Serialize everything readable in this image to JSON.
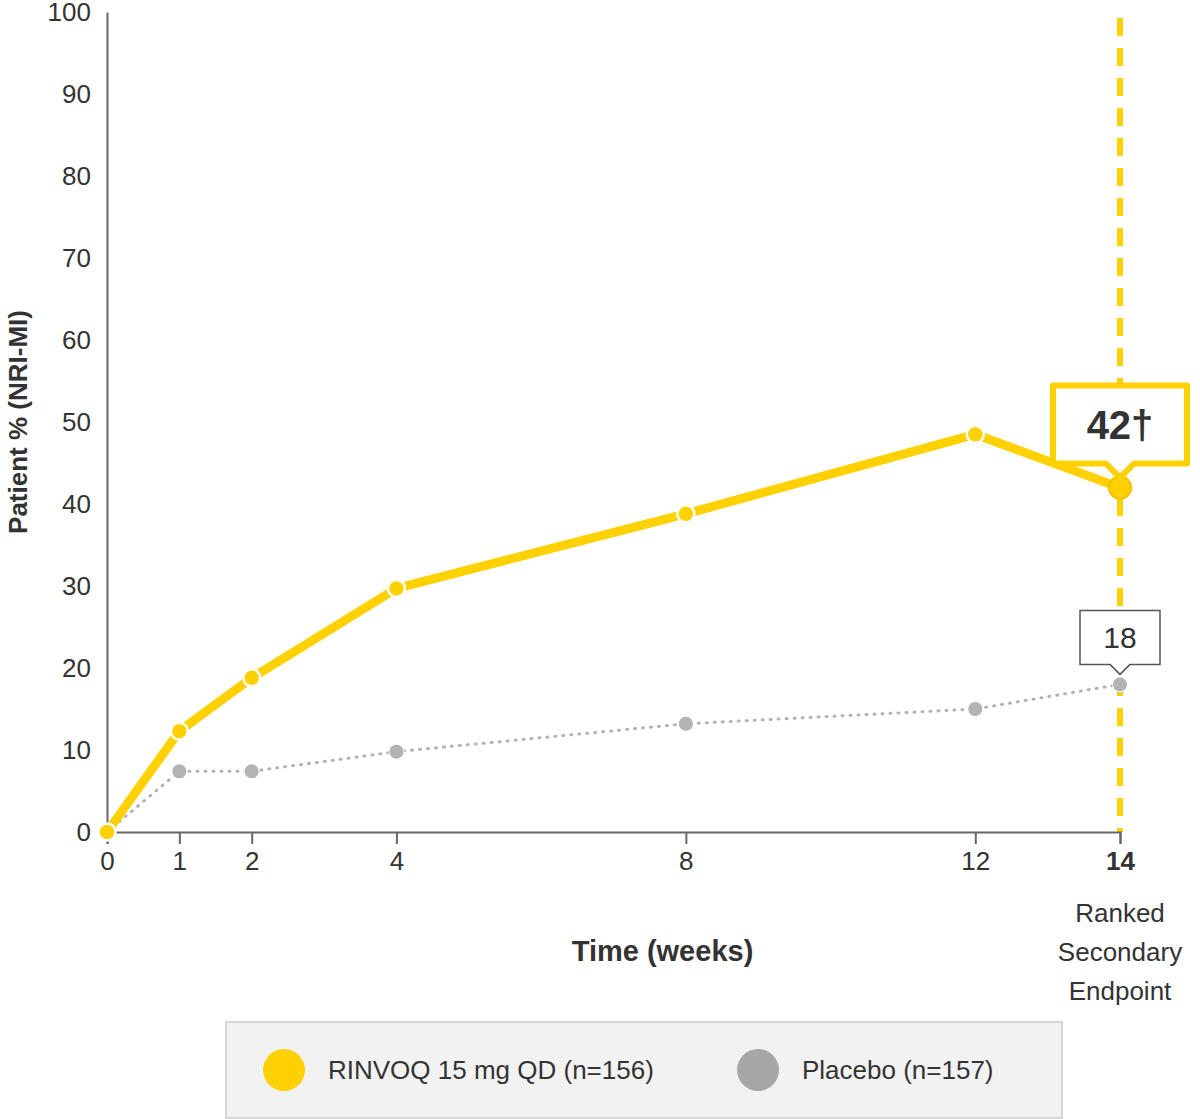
{
  "chart_data": {
    "type": "line",
    "x_label": "Time (weeks)",
    "y_label": "Patient % (NRI-MI)",
    "x": [
      0,
      1,
      2,
      4,
      8,
      12,
      14
    ],
    "xlim": [
      0,
      14
    ],
    "xticks": [
      0,
      1,
      2,
      4,
      8,
      12,
      14
    ],
    "ylim": [
      0,
      100
    ],
    "yticks": [
      0,
      10,
      20,
      30,
      40,
      50,
      60,
      70,
      80,
      90,
      100
    ],
    "grid": false,
    "legend": "bottom",
    "series": [
      {
        "name": "RINVOQ 15 mg QD (n=156)",
        "color": "#ffd100",
        "marker": "circle",
        "line_style": "solid",
        "values": [
          0,
          12.3,
          18.8,
          29.7,
          38.8,
          48.5,
          42
        ],
        "value_labels": [
          null,
          null,
          null,
          null,
          null,
          null,
          "42†"
        ]
      },
      {
        "name": "Placebo (n=157)",
        "color": "#b3b3b3",
        "marker": "circle",
        "line_style": "dotted",
        "values": [
          0,
          7.4,
          7.4,
          9.8,
          13.2,
          15,
          18
        ],
        "value_labels": [
          null,
          null,
          null,
          null,
          null,
          null,
          "18"
        ]
      }
    ],
    "annotations": [
      {
        "x": 14,
        "text": "Ranked Secondary Endpoint"
      }
    ]
  }
}
